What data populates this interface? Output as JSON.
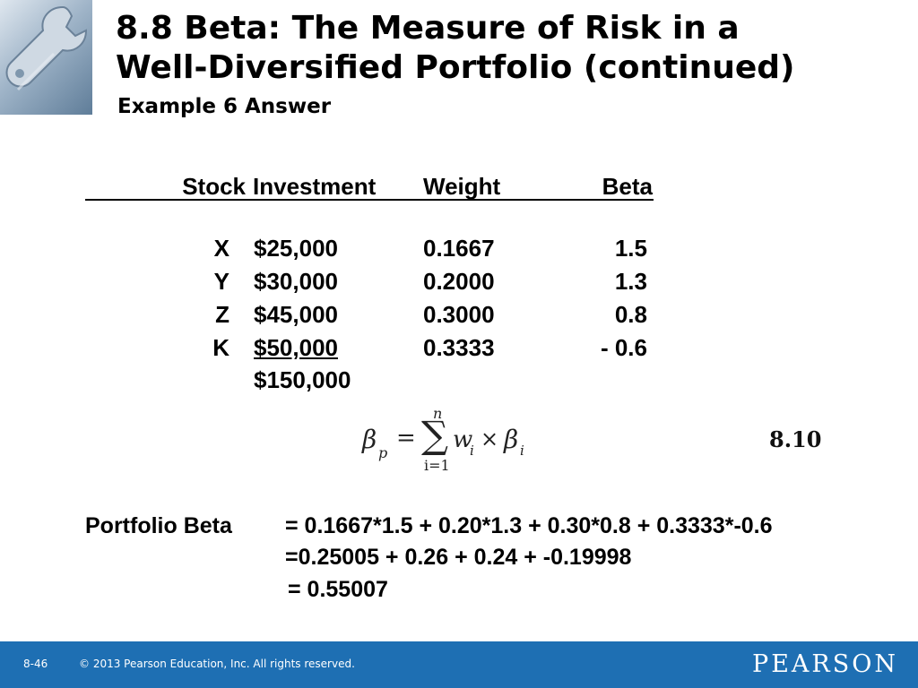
{
  "slide": {
    "title_line1": "8.8  Beta: The Measure of Risk in a",
    "title_line2": "Well-Diversified Portfolio (continued)",
    "subtitle": "Example 6 Answer"
  },
  "table": {
    "headers": [
      "Stock",
      "Investment",
      "Weight",
      "Beta"
    ],
    "rows": [
      {
        "stock": "X",
        "investment": "$25,000",
        "weight": "0.1667",
        "beta": "1.5"
      },
      {
        "stock": "Y",
        "investment": "$30,000",
        "weight": "0.2000",
        "beta": "1.3"
      },
      {
        "stock": "Z",
        "investment": "$45,000",
        "weight": "0.3000",
        "beta": "0.8"
      },
      {
        "stock": "K",
        "investment": "$50,000",
        "weight": "0.3333",
        "beta": "- 0.6"
      }
    ],
    "total": "$150,000"
  },
  "formula": {
    "lhs": "β",
    "lhs_sub": "p",
    "equals": "=",
    "sum_upper": "n",
    "sum_lower": "i=1",
    "term": "w",
    "term_sub": "i",
    "times": "×",
    "beta": "β",
    "beta_sub": "i",
    "number": "8.10"
  },
  "portfolio_beta": {
    "label": "Portfolio Beta",
    "line1": "= 0.1667*1.5 + 0.20*1.3 + 0.30*0.8 + 0.3333*-0.6",
    "line2": "=0.25005 + 0.26 + 0.24 + -0.19998",
    "line3": "= 0.55007"
  },
  "footer": {
    "page": "8-46",
    "copyright": "© 2013 Pearson Education, Inc. All rights reserved.",
    "brand": "PEARSON"
  },
  "colors": {
    "footer_bg": "#1e6fb3",
    "text": "#000000"
  },
  "icons": {
    "logo": "wrench-icon"
  }
}
